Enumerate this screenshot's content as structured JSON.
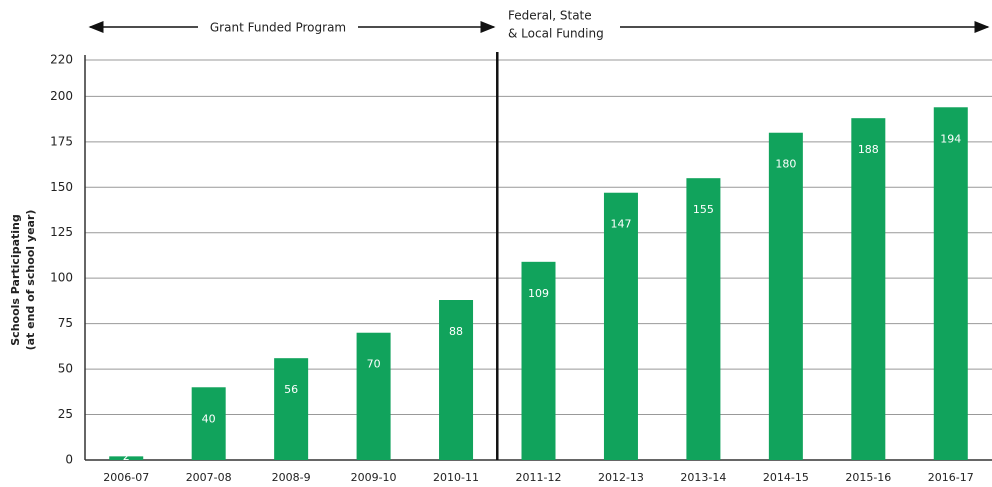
{
  "chart_data": {
    "type": "bar",
    "categories": [
      "2006-07",
      "2007-08",
      "2008-9",
      "2009-10",
      "2010-11",
      "2011-12",
      "2012-13",
      "2013-14",
      "2014-15",
      "2015-16",
      "2016-17"
    ],
    "values": [
      2,
      40,
      56,
      70,
      88,
      109,
      147,
      155,
      180,
      188,
      194
    ],
    "color": "#11a35c",
    "ylim": [
      0,
      220
    ],
    "yticks": [
      0,
      25,
      50,
      75,
      100,
      125,
      150,
      175,
      200,
      220
    ],
    "grid": true,
    "ylabel": [
      "Schools Participating",
      "(at end of school year)"
    ],
    "annotations": {
      "left": "Grant Funded Program",
      "right": [
        "Federal, State",
        "& Local Funding"
      ]
    }
  }
}
